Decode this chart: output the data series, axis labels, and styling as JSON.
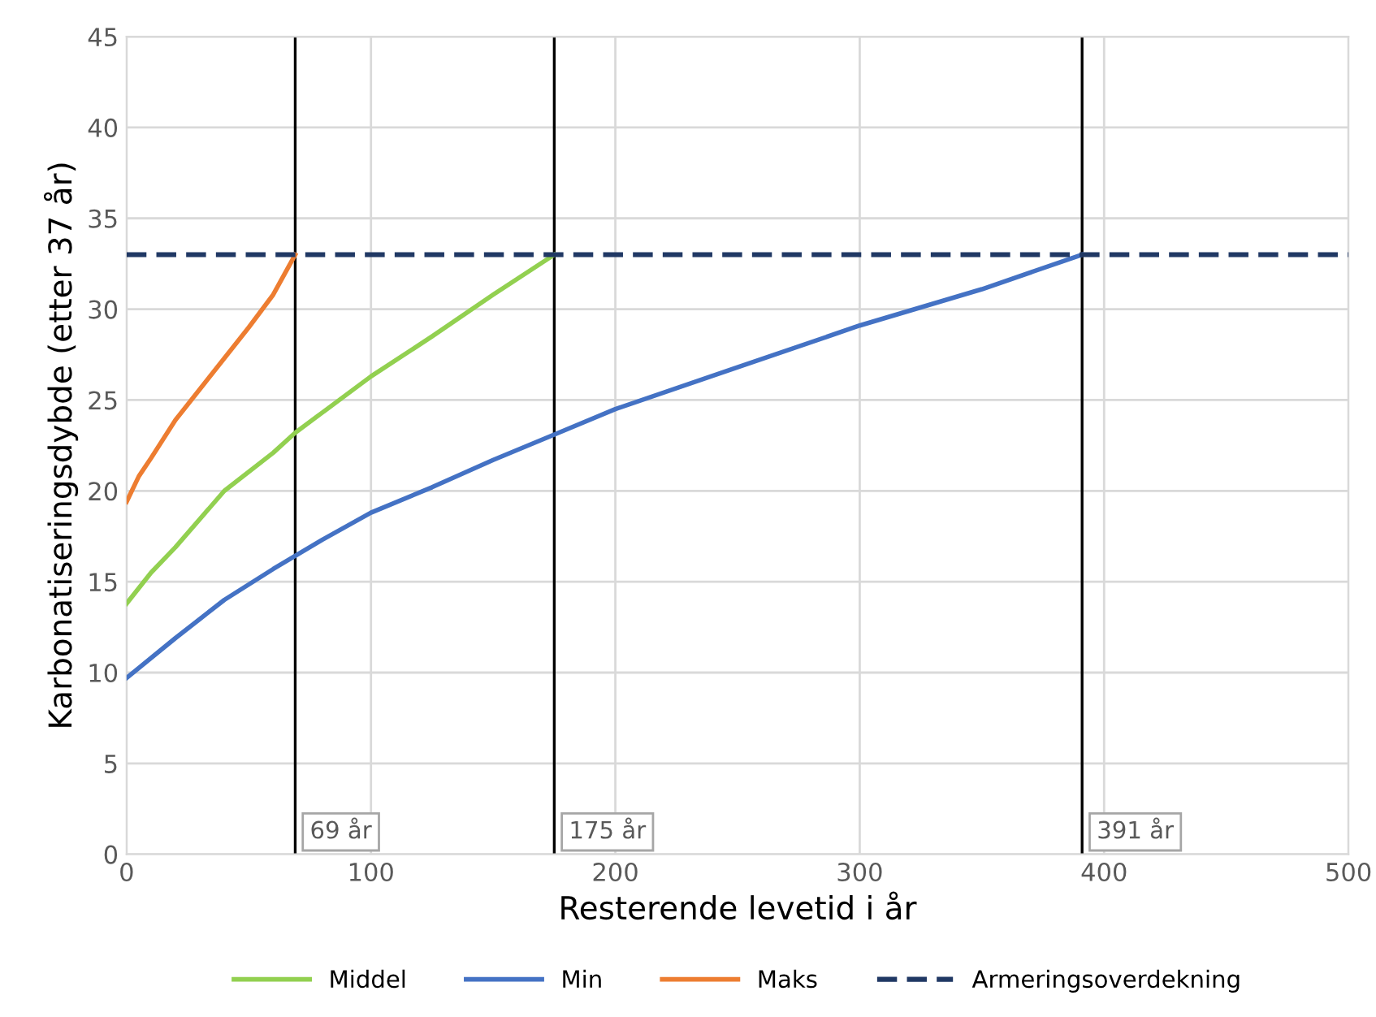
{
  "chart_data": {
    "type": "line",
    "xlabel": "Resterende levetid i år",
    "ylabel": "Karbonatiseringsdybde (etter 37 år)",
    "xlim": [
      0,
      500
    ],
    "xticks": [
      0,
      100,
      200,
      300,
      400,
      500
    ],
    "ylim": [
      0,
      45
    ],
    "yticks": [
      0,
      5,
      10,
      15,
      20,
      25,
      30,
      35,
      40,
      45
    ],
    "grid": true,
    "legend": "bottom",
    "marker": "none",
    "series": [
      {
        "name": "Middel",
        "color": "#92d050",
        "x": [
          0,
          10,
          20,
          40,
          60,
          69,
          80,
          100,
          125,
          150,
          175
        ],
        "values": [
          13.8,
          15.5,
          16.9,
          20.0,
          22.1,
          23.2,
          24.3,
          26.3,
          28.5,
          30.8,
          33
        ]
      },
      {
        "name": "Min",
        "color": "#4472c4",
        "x": [
          0,
          20,
          40,
          60,
          80,
          100,
          125,
          150,
          175,
          200,
          250,
          300,
          350,
          391
        ],
        "values": [
          9.7,
          11.9,
          14.0,
          15.7,
          17.3,
          18.8,
          20.2,
          21.7,
          23.1,
          24.5,
          26.8,
          29.1,
          31.1,
          33
        ]
      },
      {
        "name": "Maks",
        "color": "#ed7d31",
        "x": [
          0,
          5,
          10,
          20,
          30,
          40,
          50,
          60,
          69
        ],
        "values": [
          19.4,
          20.8,
          21.8,
          23.9,
          25.6,
          27.3,
          29,
          30.8,
          33
        ]
      },
      {
        "name": "Armeringsoverdekning",
        "color": "#203864",
        "line_style": "dashed",
        "x": [
          0,
          500
        ],
        "values": [
          33,
          33
        ]
      }
    ],
    "ref_lines": [
      {
        "axis": "x",
        "value": 69,
        "label": "69 år",
        "color": "#000000"
      },
      {
        "axis": "x",
        "value": 175,
        "label": "175 år",
        "color": "#000000"
      },
      {
        "axis": "x",
        "value": 391,
        "label": "391 år",
        "color": "#000000"
      }
    ]
  }
}
